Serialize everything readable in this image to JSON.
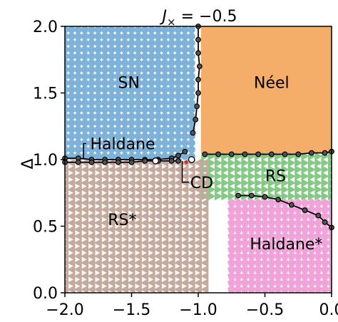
{
  "chart_data": {
    "type": "scatter",
    "title": "J_× = −0.5",
    "title_parts": {
      "symbol": "J",
      "subscript": "×",
      "rest": " = −0.5"
    },
    "xlabel": "",
    "ylabel": "Δ",
    "xlim": [
      -2.0,
      0.0
    ],
    "ylim": [
      0.0,
      2.0
    ],
    "x_ticks": [
      {
        "value": -2.0,
        "label": "−2.0"
      },
      {
        "value": -1.5,
        "label": "−1.5"
      },
      {
        "value": -1.0,
        "label": "−1.0"
      },
      {
        "value": -0.5,
        "label": "−0.5"
      },
      {
        "value": 0.0,
        "label": "0.0"
      }
    ],
    "y_ticks": [
      {
        "value": 0.0,
        "label": "0.0"
      },
      {
        "value": 0.5,
        "label": "0.5"
      },
      {
        "value": 1.0,
        "label": "1.0"
      },
      {
        "value": 1.5,
        "label": "1.5"
      },
      {
        "value": 2.0,
        "label": "2.0"
      }
    ],
    "grid": false,
    "phases": [
      {
        "name": "SN",
        "marker": "circle",
        "color": "#7fb2d9",
        "x_range": [
          -2.0,
          -1.05
        ],
        "y_range": [
          1.0,
          2.0
        ]
      },
      {
        "name": "Néel",
        "marker": "square",
        "color": "#f5ad6a",
        "x_range": [
          -0.95,
          0.0
        ],
        "y_range": [
          1.05,
          2.0
        ]
      },
      {
        "name": "RS",
        "marker": "triangle-right",
        "color": "#86c986",
        "x_range": [
          -0.95,
          0.0
        ],
        "y_range": [
          0.7,
          1.05
        ]
      },
      {
        "name": "Haldane*",
        "marker": "pentagon",
        "color": "#f0a3d9",
        "x_range": [
          -0.75,
          0.0
        ],
        "y_range": [
          0.0,
          0.7
        ]
      },
      {
        "name": "RS*",
        "marker": "triangle-left",
        "color": "#c4a99d",
        "x_range": [
          -2.0,
          -0.95
        ],
        "y_range": [
          0.0,
          1.0
        ]
      }
    ],
    "annotations": [
      {
        "text": "SN",
        "x": -1.52,
        "y": 1.58
      },
      {
        "text": "Néel",
        "x": -0.45,
        "y": 1.58
      },
      {
        "text": "RS",
        "x": -0.42,
        "y": 0.88
      },
      {
        "text": "RS*",
        "x": -1.57,
        "y": 0.55
      },
      {
        "text": "Haldane*",
        "x": -0.34,
        "y": 0.37
      },
      {
        "text": "Haldane",
        "x": -1.6,
        "y": 1.12
      },
      {
        "text": "CD",
        "x": -1.02,
        "y": 0.83
      }
    ],
    "boundaries": [
      {
        "name": "sn-neel-boundary",
        "x": [
          -1.0,
          -1.0,
          -1.0,
          -0.99,
          -1.0,
          -1.0,
          -1.01,
          -1.02,
          -1.04
        ],
        "y": [
          2.0,
          1.9,
          1.8,
          1.7,
          1.6,
          1.5,
          1.4,
          1.3,
          1.2
        ]
      },
      {
        "name": "haldane-upper-boundary",
        "x": [
          -2.0,
          -1.9,
          -1.8,
          -1.7,
          -1.6,
          -1.5,
          -1.4,
          -1.3,
          -1.2,
          -1.15,
          -1.1
        ],
        "y": [
          1.01,
          1.01,
          1.0,
          1.0,
          1.0,
          1.0,
          1.0,
          1.0,
          1.01,
          1.03,
          1.06
        ]
      },
      {
        "name": "haldane-lower-boundary",
        "x": [
          -2.0,
          -1.9,
          -1.8,
          -1.7,
          -1.6,
          -1.5,
          -1.4,
          -1.3,
          -1.2,
          -1.15
        ],
        "y": [
          0.98,
          0.98,
          0.98,
          0.98,
          0.98,
          0.98,
          0.99,
          0.99,
          0.99,
          0.99
        ]
      },
      {
        "name": "neel-rs-boundary",
        "x": [
          -0.95,
          -0.85,
          -0.75,
          -0.65,
          -0.55,
          -0.45,
          -0.35,
          -0.25,
          -0.15,
          -0.05,
          0.0
        ],
        "y": [
          1.04,
          1.04,
          1.04,
          1.04,
          1.04,
          1.04,
          1.04,
          1.04,
          1.05,
          1.05,
          1.06
        ]
      },
      {
        "name": "rs-haldane-star-boundary",
        "x": [
          -0.7,
          -0.6,
          -0.5,
          -0.4,
          -0.3,
          -0.2,
          -0.1,
          -0.05,
          0.0
        ],
        "y": [
          0.73,
          0.73,
          0.72,
          0.7,
          0.66,
          0.62,
          0.58,
          0.53,
          0.49
        ]
      }
    ],
    "open_markers": [
      {
        "x": -1.32,
        "y": 0.99
      },
      {
        "x": -1.05,
        "y": 1.0
      }
    ],
    "red_point": {
      "x": -1.09,
      "y": 0.98
    }
  }
}
